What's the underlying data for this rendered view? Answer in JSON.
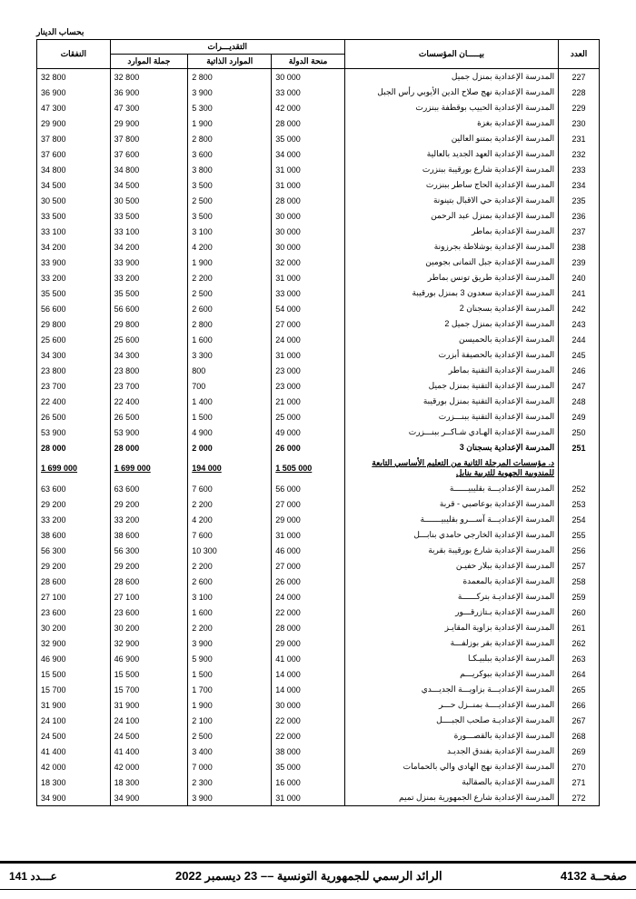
{
  "currency_label": "بحساب الدينار",
  "headers": {
    "idx": "العدد",
    "entity": "بيـــــان المؤسسات",
    "estimates": "التقديـــرات",
    "grant": "منحة الدولة",
    "own": "الموارد الذاتية",
    "total_res": "جملة الموارد",
    "expenses": "النفقات"
  },
  "rows": [
    {
      "idx": "227",
      "desc": "المدرسة الإعدادية بمنزل جميل",
      "c1": "30 000",
      "c2": "2 800",
      "c3": "32 800",
      "c4": "32 800"
    },
    {
      "idx": "228",
      "desc": "المدرسة الإعدادية نهج صلاح الدين الأيوبي رأس الجبل",
      "c1": "33 000",
      "c2": "3 900",
      "c3": "36 900",
      "c4": "36 900"
    },
    {
      "idx": "229",
      "desc": "المدرسة الإعدادية الحبيب بوقطفة ببنزرت",
      "c1": "42 000",
      "c2": "5 300",
      "c3": "47 300",
      "c4": "47 300"
    },
    {
      "idx": "230",
      "desc": "المدرسة الإعدادية بغزة",
      "c1": "28 000",
      "c2": "1 900",
      "c3": "29 900",
      "c4": "29 900"
    },
    {
      "idx": "231",
      "desc": "المدرسة الإعدادية بمتنو العالين",
      "c1": "35 000",
      "c2": "2 800",
      "c3": "37 800",
      "c4": "37 800"
    },
    {
      "idx": "232",
      "desc": "المدرسة الإعدادية العهد الجديد بالعالية",
      "c1": "34 000",
      "c2": "3 600",
      "c3": "37 600",
      "c4": "37 600"
    },
    {
      "idx": "233",
      "desc": "المدرسة الإعدادية شارع بورقيبة ببنزرت",
      "c1": "31 000",
      "c2": "3 800",
      "c3": "34 800",
      "c4": "34 800"
    },
    {
      "idx": "234",
      "desc": "المدرسة الإعدادية الحاج ساطر ببنزرت",
      "c1": "31 000",
      "c2": "3 500",
      "c3": "34 500",
      "c4": "34 500"
    },
    {
      "idx": "235",
      "desc": "المدرسة الإعدادية حي الاقبال بتينونة",
      "c1": "28 000",
      "c2": "2 500",
      "c3": "30 500",
      "c4": "30 500"
    },
    {
      "idx": "236",
      "desc": "المدرسة الإعدادية بمنزل عبد الرحمن",
      "c1": "30 000",
      "c2": "3 500",
      "c3": "33 500",
      "c4": "33 500"
    },
    {
      "idx": "237",
      "desc": "المدرسة الإعدادية بماطر",
      "c1": "30 000",
      "c2": "3 100",
      "c3": "33 100",
      "c4": "33 100"
    },
    {
      "idx": "238",
      "desc": "المدرسة الإعدادية بوشلاطة بجرزونة",
      "c1": "30 000",
      "c2": "4 200",
      "c3": "34 200",
      "c4": "34 200"
    },
    {
      "idx": "239",
      "desc": "المدرسة الإعدادية جبل التمانى بجومين",
      "c1": "32 000",
      "c2": "1 900",
      "c3": "33 900",
      "c4": "33 900"
    },
    {
      "idx": "240",
      "desc": "المدرسة الإعدادية طريق تونس بماطر",
      "c1": "31 000",
      "c2": "2 200",
      "c3": "33 200",
      "c4": "33 200"
    },
    {
      "idx": "241",
      "desc": "المدرسة الإعدادية سعدون 3 بمنزل بورقيبة",
      "c1": "33 000",
      "c2": "2 500",
      "c3": "35 500",
      "c4": "35 500"
    },
    {
      "idx": "242",
      "desc": "المدرسة الإعدادية بسجنان 2",
      "c1": "54 000",
      "c2": "2 600",
      "c3": "56 600",
      "c4": "56 600"
    },
    {
      "idx": "243",
      "desc": "المدرسة الإعدادية بمنزل جميل 2",
      "c1": "27 000",
      "c2": "2 800",
      "c3": "29 800",
      "c4": "29 800"
    },
    {
      "idx": "244",
      "desc": "المدرسة الإعدادية بالحميسن",
      "c1": "24 000",
      "c2": "1 600",
      "c3": "25 600",
      "c4": "25 600"
    },
    {
      "idx": "245",
      "desc": "المدرسة الإعدادية بالحصيفة أبزرت",
      "c1": "31 000",
      "c2": "3 300",
      "c3": "34 300",
      "c4": "34 300"
    },
    {
      "idx": "246",
      "desc": "المدرسة الإعدادية التقنية بماطر",
      "c1": "23 000",
      "c2": "800",
      "c3": "23 800",
      "c4": "23 800"
    },
    {
      "idx": "247",
      "desc": "المدرسة الإعدادية التقنية بمنزل جميل",
      "c1": "23 000",
      "c2": "700",
      "c3": "23 700",
      "c4": "23 700"
    },
    {
      "idx": "248",
      "desc": "المدرسة الإعدادية التقنية بمنزل بورقيبة",
      "c1": "21 000",
      "c2": "1 400",
      "c3": "22 400",
      "c4": "22 400"
    },
    {
      "idx": "249",
      "desc": "المدرسة الإعدادية التقنية ببنـــزرت",
      "c1": "25 000",
      "c2": "1 500",
      "c3": "26 500",
      "c4": "26 500"
    },
    {
      "idx": "250",
      "desc": "المدرسة الإعدادية الهـادي شـاكــر ببنـــزرت",
      "c1": "49 000",
      "c2": "4 900",
      "c3": "53 900",
      "c4": "53 900"
    },
    {
      "idx": "251",
      "desc": "المدرسة الإعدادية بسجنان 3",
      "c1": "26 000",
      "c2": "2 000",
      "c3": "28 000",
      "c4": "28 000",
      "bold": true
    },
    {
      "idx": "",
      "desc": "د. مؤسسات المرحلة الثانية من التعليم الأساسي التابعة للمندوبية الجهوية للتربية بنابل",
      "c1": "1 505 000",
      "c2": "194 000",
      "c3": "1 699 000",
      "c4": "1 699 000",
      "subtotal": true
    },
    {
      "idx": "252",
      "desc": "المدرسة الإعداديـــة بقليبيــــــة",
      "c1": "56 000",
      "c2": "7 600",
      "c3": "63 600",
      "c4": "63 600"
    },
    {
      "idx": "253",
      "desc": "المدرسة الإعدادية بوعاصبي - قربة",
      "c1": "27 000",
      "c2": "2 200",
      "c3": "29 200",
      "c4": "29 200"
    },
    {
      "idx": "254",
      "desc": "المدرسة الإعداديـــة آســـرو بقليبيـــــــة",
      "c1": "29 000",
      "c2": "4 200",
      "c3": "33 200",
      "c4": "33 200"
    },
    {
      "idx": "255",
      "desc": "المدرسة الإعدادية الخارجي حامدي بنابـــل",
      "c1": "31 000",
      "c2": "7 600",
      "c3": "38 600",
      "c4": "38 600"
    },
    {
      "idx": "256",
      "desc": "المدرسة الإعدادية شارع بورقيبة بقربة",
      "c1": "46 000",
      "c2": "10 300",
      "c3": "56 300",
      "c4": "56 300"
    },
    {
      "idx": "257",
      "desc": "المدرسة الإعدادية ببلار حفيـن",
      "c1": "27 000",
      "c2": "2 200",
      "c3": "29 200",
      "c4": "29 200"
    },
    {
      "idx": "258",
      "desc": "المدرسة الإعدادية بالمعمدة",
      "c1": "26 000",
      "c2": "2 600",
      "c3": "28 600",
      "c4": "28 600"
    },
    {
      "idx": "259",
      "desc": "المدرسة الإعداديـة بتركــــــة",
      "c1": "24 000",
      "c2": "3 100",
      "c3": "27 100",
      "c4": "27 100"
    },
    {
      "idx": "260",
      "desc": "المدرسة الإعدادية بـتازرقـــور",
      "c1": "22 000",
      "c2": "1 600",
      "c3": "23 600",
      "c4": "23 600"
    },
    {
      "idx": "261",
      "desc": "المدرسة الإعدادية بزاوية المقايـز",
      "c1": "28 000",
      "c2": "2 200",
      "c3": "30 200",
      "c4": "30 200"
    },
    {
      "idx": "262",
      "desc": "المدرسة الإعدادية بقر بوزلفـــة",
      "c1": "29 000",
      "c2": "3 900",
      "c3": "32 900",
      "c4": "32 900"
    },
    {
      "idx": "263",
      "desc": "المدرسة الإعدادية ببلبيـكـا",
      "c1": "41 000",
      "c2": "5 900",
      "c3": "46 900",
      "c4": "46 900"
    },
    {
      "idx": "264",
      "desc": "المدرسة الإعدادية ببوكريـــم",
      "c1": "14 000",
      "c2": "1 500",
      "c3": "15 500",
      "c4": "15 500"
    },
    {
      "idx": "265",
      "desc": "المدرسة الإعداديـــة بزاويـــة الجديـــدي",
      "c1": "14 000",
      "c2": "1 700",
      "c3": "15 700",
      "c4": "15 700"
    },
    {
      "idx": "266",
      "desc": "المدرسة الإعداديــــة بمنــزل حـــر",
      "c1": "30 000",
      "c2": "1 900",
      "c3": "31 900",
      "c4": "31 900"
    },
    {
      "idx": "267",
      "desc": "المدرسة الإعداديـة صلحب الجبــــل",
      "c1": "22 000",
      "c2": "2 100",
      "c3": "24 100",
      "c4": "24 100"
    },
    {
      "idx": "268",
      "desc": "المدرسة الإعدادية بالقصـــورة",
      "c1": "22 000",
      "c2": "2 500",
      "c3": "24 500",
      "c4": "24 500"
    },
    {
      "idx": "269",
      "desc": "المدرسة الإعدادية بفندق الجديـد",
      "c1": "38 000",
      "c2": "3 400",
      "c3": "41 400",
      "c4": "41 400"
    },
    {
      "idx": "270",
      "desc": "المدرسة الإعدادية نهج الهادي والي بالحمامات",
      "c1": "35 000",
      "c2": "7 000",
      "c3": "42 000",
      "c4": "42 000"
    },
    {
      "idx": "271",
      "desc": "المدرسة الإعدادية بالصقالبة",
      "c1": "16 000",
      "c2": "2 300",
      "c3": "18 300",
      "c4": "18 300"
    },
    {
      "idx": "272",
      "desc": "المدرسة الإعدادية شارع الجمهورية بمنزل تميم",
      "c1": "31 000",
      "c2": "3 900",
      "c3": "34 900",
      "c4": "34 900"
    }
  ],
  "footer": {
    "page_label": "صفحــة",
    "page_num": "4132",
    "center": "الرائد الرسمي للجمهورية التونسية –– 23 ديسمبر 2022",
    "issue_label": "عـــدد",
    "issue_num": "141"
  }
}
